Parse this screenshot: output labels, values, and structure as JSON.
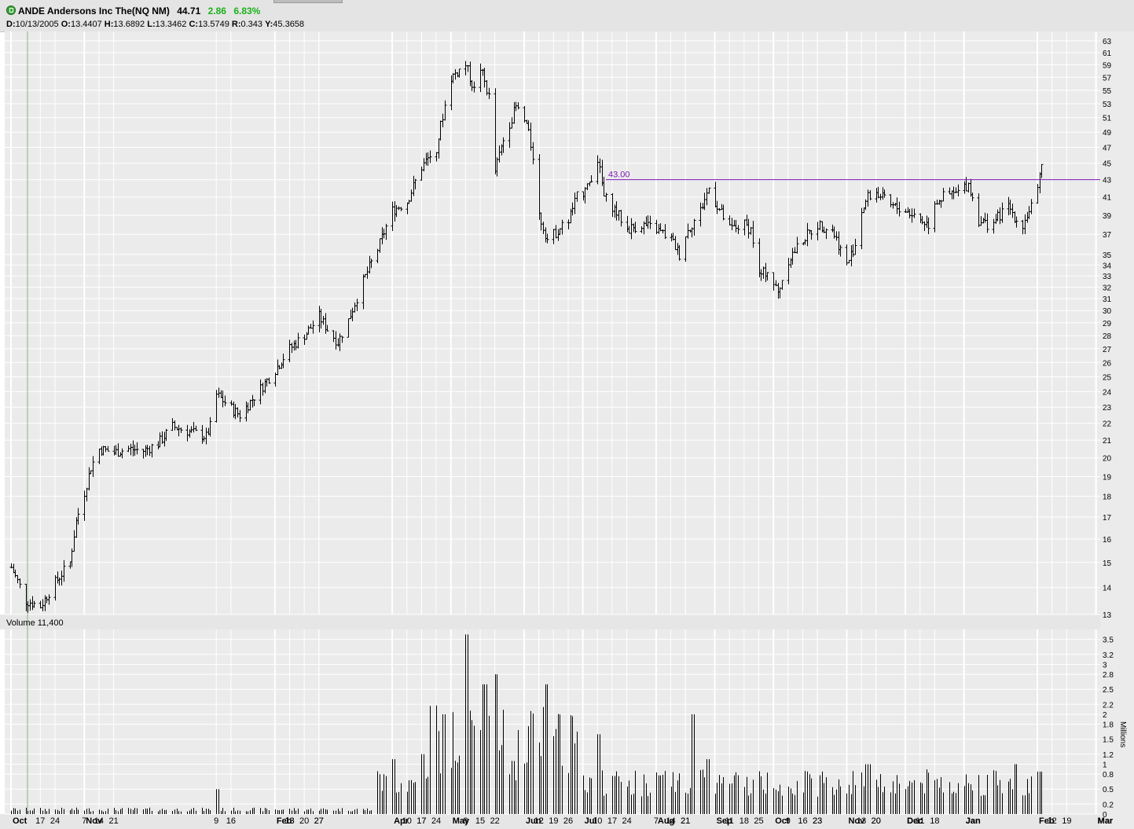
{
  "header": {
    "symbol_name": "ANDE Andersons Inc The(NQ NM)",
    "last": "44.71",
    "change": "2.86",
    "change_pct": "6.83%"
  },
  "ohlc_bar": {
    "date_label": "D:",
    "date": "10/13/2005",
    "open_label": "O:",
    "open": "13.4407",
    "high_label": "H:",
    "high": "13.6892",
    "low_label": "L:",
    "low": "13.3462",
    "close_label": "C:",
    "close": "13.5749",
    "range_label": "R:",
    "range": "0.343",
    "y_label": "Y:",
    "y": "45.3658"
  },
  "volume_label": "Volume 11,400",
  "volume_unit": "Millions",
  "colors": {
    "background": "#ffffff",
    "panel": "#ebebeb",
    "grid": "#ffffff",
    "bar": "#000000",
    "resistance": "#7b16b5",
    "change_up": "#1ab21a"
  },
  "chart_data": [
    {
      "type": "ohlc",
      "x_labels": [
        "Oct",
        "17",
        "24",
        "Nov",
        "7",
        "14",
        "21",
        "Dec",
        "12",
        "19",
        "27",
        "Jan",
        "9",
        "17",
        "23",
        "Feb",
        "13",
        "21",
        "Mar",
        "13",
        "20",
        "27",
        "Apr",
        "10",
        "17",
        "24",
        "May",
        "8",
        "15",
        "22",
        "Jun",
        "12",
        "19",
        "26",
        "Jul",
        "10",
        "17",
        "24",
        "Aug",
        "7",
        "14",
        "21",
        "Sep",
        "11",
        "18",
        "25",
        "Oct",
        "9",
        "16",
        "23",
        "Nov",
        "13",
        "20",
        "Dec",
        "11",
        "18",
        "Jan",
        "16",
        "Feb",
        "12",
        "20",
        "Mar"
      ],
      "y_ticks": [
        13,
        14,
        15,
        16,
        17,
        18,
        19,
        20,
        21,
        22,
        23,
        24,
        25,
        26,
        27,
        28,
        29,
        30,
        31,
        32,
        33,
        34,
        35,
        37,
        39,
        41,
        43,
        45,
        47,
        49,
        51,
        53,
        55,
        57,
        59,
        61,
        63
      ],
      "ylim": [
        13,
        63
      ],
      "y_scale": "log",
      "grid": true,
      "resistance_line": {
        "value": 43.0,
        "label": "43.00"
      },
      "close_points": [
        [
          "Oct 3 2005",
          14.8
        ],
        [
          "Oct 10 2005",
          13.5
        ],
        [
          "Oct 17 2005",
          13.3
        ],
        [
          "Oct 24 2005",
          14.2
        ],
        [
          "Oct 31 2005",
          15.0
        ],
        [
          "Nov 3 2005",
          16.8
        ],
        [
          "Nov 7 2005",
          18.2
        ],
        [
          "Nov 10 2005",
          19.5
        ],
        [
          "Nov 14 2005",
          20.5
        ],
        [
          "Nov 21 2005",
          20.3
        ],
        [
          "Nov 28 2005",
          20.5
        ],
        [
          "Dec 5 2005",
          20.4
        ],
        [
          "Dec 12 2005",
          20.8
        ],
        [
          "Dec 19 2005",
          21.8
        ],
        [
          "Dec 27 2005",
          21.5
        ],
        [
          "Jan 4 2006",
          21.2
        ],
        [
          "Jan 6 2006",
          21.8
        ],
        [
          "Jan 9 2006",
          23.8
        ],
        [
          "Jan 17 2006",
          22.8
        ],
        [
          "Jan 20 2006",
          22.5
        ],
        [
          "Jan 23 2006",
          23.0
        ],
        [
          "Jan 30 2006",
          24.2
        ],
        [
          "Feb 6 2006",
          25.5
        ],
        [
          "Feb 13 2006",
          27.0
        ],
        [
          "Feb 21 2006",
          28.2
        ],
        [
          "Feb 27 2006",
          29.5
        ],
        [
          "Mar 3 2006",
          28.5
        ],
        [
          "Mar 8 2006",
          27.5
        ],
        [
          "Mar 13 2006",
          29.2
        ],
        [
          "Mar 20 2006",
          32.5
        ],
        [
          "Mar 27 2006",
          35.5
        ],
        [
          "Apr 3 2006",
          39.5
        ],
        [
          "Apr 10 2006",
          40.5
        ],
        [
          "Apr 17 2006",
          44.5
        ],
        [
          "Apr 24 2006",
          47.0
        ],
        [
          "May 1 2006",
          57.0
        ],
        [
          "May 8 2006",
          59.0
        ],
        [
          "May 12 2006",
          55.0
        ],
        [
          "May 15 2006",
          58.5
        ],
        [
          "May 19 2006",
          54.0
        ],
        [
          "May 22 2006",
          44.0
        ],
        [
          "May 26 2006",
          48.0
        ],
        [
          "Jun 1 2006",
          52.5
        ],
        [
          "Jun 6 2006",
          50.0
        ],
        [
          "Jun 9 2006",
          46.0
        ],
        [
          "Jun 12 2006",
          39.0
        ],
        [
          "Jun 16 2006",
          36.5
        ],
        [
          "Jun 19 2006",
          37.0
        ],
        [
          "Jun 26 2006",
          38.5
        ],
        [
          "Jun 30 2006",
          41.0
        ],
        [
          "Jul 5 2006",
          42.0
        ],
        [
          "Jul 10 2006",
          45.5
        ],
        [
          "Jul 13 2006",
          41.0
        ],
        [
          "Jul 17 2006",
          40.0
        ],
        [
          "Jul 24 2006",
          37.5
        ],
        [
          "Jul 31 2006",
          38.0
        ],
        [
          "Aug 7 2006",
          37.5
        ],
        [
          "Aug 14 2006",
          36.5
        ],
        [
          "Aug 18 2006",
          35.0
        ],
        [
          "Aug 21 2006",
          37.0
        ],
        [
          "Aug 28 2006",
          39.5
        ],
        [
          "Sep 1 2006",
          42.0
        ],
        [
          "Sep 5 2006",
          40.0
        ],
        [
          "Sep 11 2006",
          37.5
        ],
        [
          "Sep 18 2006",
          38.0
        ],
        [
          "Sep 21 2006",
          37.5
        ],
        [
          "Sep 25 2006",
          33.0
        ],
        [
          "Sep 29 2006",
          33.5
        ],
        [
          "Oct 4 2006",
          31.5
        ],
        [
          "Oct 9 2006",
          34.5
        ],
        [
          "Oct 16 2006",
          36.5
        ],
        [
          "Oct 23 2006",
          38.0
        ],
        [
          "Oct 30 2006",
          37.5
        ],
        [
          "Nov 6 2006",
          34.0
        ],
        [
          "Nov 10 2006",
          36.0
        ],
        [
          "Nov 13 2006",
          39.5
        ],
        [
          "Nov 16 2006",
          41.0
        ],
        [
          "Nov 20 2006",
          41.5
        ],
        [
          "Nov 27 2006",
          40.0
        ],
        [
          "Dec 4 2006",
          39.5
        ],
        [
          "Dec 8 2006",
          39.0
        ],
        [
          "Dec 11 2006",
          38.5
        ],
        [
          "Dec 15 2006",
          38.0
        ],
        [
          "Dec 18 2006",
          40.5
        ],
        [
          "Dec 22 2006",
          41.0
        ],
        [
          "Dec 29 2006",
          41.5
        ],
        [
          "Jan 3 2007",
          42.5
        ],
        [
          "Jan 8 2007",
          38.5
        ],
        [
          "Jan 12 2007",
          38.0
        ],
        [
          "Jan 16 2007",
          38.5
        ],
        [
          "Jan 22 2007",
          40.0
        ],
        [
          "Jan 26 2007",
          38.5
        ],
        [
          "Jan 29 2007",
          38.0
        ],
        [
          "Feb 2 2007",
          40.0
        ],
        [
          "Feb 5 2007",
          41.5
        ],
        [
          "Feb 7 2007",
          44.7
        ]
      ]
    },
    {
      "type": "bar",
      "title": "Volume 11,400",
      "ylabel": "Millions",
      "y_ticks": [
        0,
        0.2,
        0.5,
        0.8,
        1,
        1.2,
        1.5,
        1.8,
        2,
        2.2,
        2.5,
        2.8,
        3,
        3.2,
        3.5
      ],
      "ylim": [
        0,
        3.7
      ],
      "peak_points": [
        [
          "Jan 9 2006",
          0.5
        ],
        [
          "Mar 27 2006",
          0.8
        ],
        [
          "Apr 3 2006",
          1.1
        ],
        [
          "Apr 17 2006",
          1.2
        ],
        [
          "Apr 28 2006",
          2.0
        ],
        [
          "May 8 2006",
          3.6
        ],
        [
          "May 17 2006",
          2.6
        ],
        [
          "May 22 2006",
          2.8
        ],
        [
          "Jun 16 2006",
          2.6
        ],
        [
          "Jul 10 2006",
          1.6
        ],
        [
          "Aug 25 2006",
          2.0
        ],
        [
          "Sep 1 2006",
          1.1
        ],
        [
          "Nov 16 2006",
          1.0
        ],
        [
          "Jan 26 2007",
          1.0
        ],
        [
          "Feb 7 2007",
          0.85
        ]
      ]
    }
  ]
}
